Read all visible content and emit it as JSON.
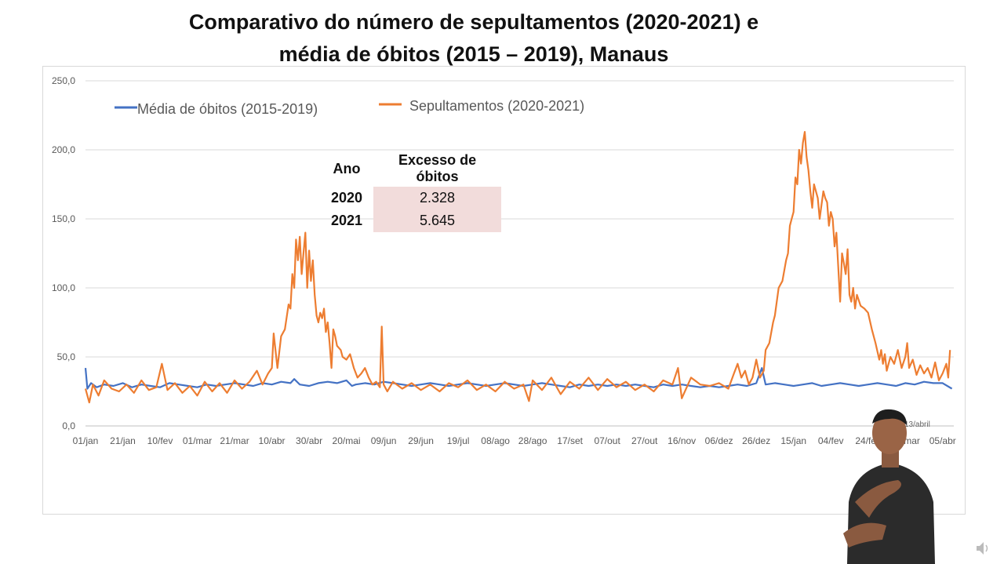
{
  "title": {
    "line1": "Comparativo do número de sepultamentos (2020-2021) e",
    "line2": "média de óbitos (2015 – 2019), Manaus"
  },
  "table": {
    "headers": [
      "Ano",
      "Excesso de óbitos"
    ],
    "rows": [
      {
        "year": "2020",
        "value": "2.328"
      },
      {
        "year": "2021",
        "value": "5.645"
      }
    ]
  },
  "annotation": "13/abril",
  "colors": {
    "media": "#4472c4",
    "sepultamentos": "#ed7d31",
    "table_fill": "#f2dcdb",
    "grid": "#d9d9d9"
  },
  "chart_data": {
    "type": "line",
    "title": "Comparativo do número de sepultamentos (2020-2021) e média de óbitos (2015 – 2019), Manaus",
    "xlabel": "",
    "ylabel": "",
    "ylim": [
      0,
      250
    ],
    "yticks": [
      "0,0",
      "50,0",
      "100,0",
      "150,0",
      "200,0",
      "250,0"
    ],
    "grid": true,
    "legend_position": "top-left",
    "x_start": "01/jan/2020",
    "x_end": "14/abr/2021",
    "categories": [
      "01/jan",
      "21/jan",
      "10/fev",
      "01/mar",
      "21/mar",
      "10/abr",
      "30/abr",
      "20/mai",
      "09/jun",
      "29/jun",
      "19/jul",
      "08/ago",
      "28/ago",
      "17/set",
      "07/out",
      "27/out",
      "16/nov",
      "06/dez",
      "26/dez",
      "15/jan",
      "04/fev",
      "24/fev",
      "16/mar",
      "05/abr"
    ],
    "category_days": [
      0,
      20,
      40,
      60,
      80,
      100,
      120,
      140,
      160,
      180,
      200,
      220,
      240,
      260,
      280,
      300,
      320,
      340,
      360,
      380,
      400,
      420,
      440,
      460
    ],
    "series": [
      {
        "name": "Média de óbitos (2015-2019)",
        "color": "#4472c4",
        "points": [
          [
            0,
            42
          ],
          [
            1,
            27
          ],
          [
            3,
            31
          ],
          [
            6,
            28
          ],
          [
            10,
            30
          ],
          [
            15,
            29
          ],
          [
            20,
            31
          ],
          [
            25,
            28
          ],
          [
            30,
            30
          ],
          [
            35,
            29
          ],
          [
            40,
            28
          ],
          [
            45,
            31
          ],
          [
            50,
            30
          ],
          [
            55,
            29
          ],
          [
            60,
            28
          ],
          [
            65,
            30
          ],
          [
            70,
            29
          ],
          [
            75,
            30
          ],
          [
            80,
            31
          ],
          [
            85,
            30
          ],
          [
            90,
            29
          ],
          [
            95,
            31
          ],
          [
            100,
            30
          ],
          [
            105,
            32
          ],
          [
            110,
            31
          ],
          [
            112,
            34
          ],
          [
            115,
            30
          ],
          [
            120,
            29
          ],
          [
            125,
            31
          ],
          [
            130,
            32
          ],
          [
            135,
            31
          ],
          [
            140,
            33
          ],
          [
            143,
            29
          ],
          [
            145,
            30
          ],
          [
            150,
            31
          ],
          [
            155,
            30
          ],
          [
            160,
            32
          ],
          [
            165,
            31
          ],
          [
            170,
            30
          ],
          [
            175,
            29
          ],
          [
            180,
            30
          ],
          [
            185,
            31
          ],
          [
            190,
            30
          ],
          [
            195,
            29
          ],
          [
            200,
            30
          ],
          [
            205,
            31
          ],
          [
            210,
            30
          ],
          [
            215,
            29
          ],
          [
            220,
            30
          ],
          [
            225,
            31
          ],
          [
            230,
            30
          ],
          [
            235,
            29
          ],
          [
            240,
            30
          ],
          [
            245,
            31
          ],
          [
            250,
            30
          ],
          [
            255,
            29
          ],
          [
            260,
            28
          ],
          [
            265,
            30
          ],
          [
            270,
            29
          ],
          [
            275,
            30
          ],
          [
            280,
            29
          ],
          [
            285,
            30
          ],
          [
            290,
            29
          ],
          [
            295,
            30
          ],
          [
            300,
            29
          ],
          [
            305,
            28
          ],
          [
            310,
            30
          ],
          [
            315,
            29
          ],
          [
            320,
            30
          ],
          [
            325,
            29
          ],
          [
            330,
            28
          ],
          [
            335,
            29
          ],
          [
            340,
            28
          ],
          [
            345,
            29
          ],
          [
            350,
            30
          ],
          [
            355,
            29
          ],
          [
            360,
            31
          ],
          [
            363,
            42
          ],
          [
            365,
            30
          ],
          [
            370,
            31
          ],
          [
            375,
            30
          ],
          [
            380,
            29
          ],
          [
            385,
            30
          ],
          [
            390,
            31
          ],
          [
            395,
            29
          ],
          [
            400,
            30
          ],
          [
            405,
            31
          ],
          [
            410,
            30
          ],
          [
            415,
            29
          ],
          [
            420,
            30
          ],
          [
            425,
            31
          ],
          [
            430,
            30
          ],
          [
            435,
            29
          ],
          [
            440,
            31
          ],
          [
            445,
            30
          ],
          [
            450,
            32
          ],
          [
            455,
            31
          ],
          [
            460,
            31
          ],
          [
            465,
            27
          ]
        ]
      },
      {
        "name": "Sepultamentos (2020-2021)",
        "color": "#ed7d31",
        "points": [
          [
            0,
            27
          ],
          [
            2,
            17
          ],
          [
            4,
            30
          ],
          [
            7,
            22
          ],
          [
            10,
            33
          ],
          [
            14,
            27
          ],
          [
            18,
            25
          ],
          [
            22,
            30
          ],
          [
            26,
            24
          ],
          [
            30,
            33
          ],
          [
            34,
            26
          ],
          [
            38,
            28
          ],
          [
            41,
            45
          ],
          [
            44,
            26
          ],
          [
            48,
            31
          ],
          [
            52,
            24
          ],
          [
            56,
            29
          ],
          [
            60,
            22
          ],
          [
            64,
            32
          ],
          [
            68,
            25
          ],
          [
            72,
            31
          ],
          [
            76,
            24
          ],
          [
            80,
            33
          ],
          [
            84,
            27
          ],
          [
            88,
            32
          ],
          [
            92,
            40
          ],
          [
            95,
            30
          ],
          [
            98,
            38
          ],
          [
            100,
            42
          ],
          [
            101,
            67
          ],
          [
            103,
            42
          ],
          [
            105,
            65
          ],
          [
            107,
            70
          ],
          [
            109,
            88
          ],
          [
            110,
            85
          ],
          [
            111,
            110
          ],
          [
            112,
            100
          ],
          [
            113,
            135
          ],
          [
            114,
            120
          ],
          [
            115,
            137
          ],
          [
            116,
            110
          ],
          [
            117,
            125
          ],
          [
            118,
            140
          ],
          [
            119,
            100
          ],
          [
            120,
            127
          ],
          [
            121,
            105
          ],
          [
            122,
            120
          ],
          [
            123,
            95
          ],
          [
            124,
            80
          ],
          [
            125,
            75
          ],
          [
            126,
            82
          ],
          [
            127,
            78
          ],
          [
            128,
            85
          ],
          [
            129,
            68
          ],
          [
            130,
            75
          ],
          [
            131,
            60
          ],
          [
            132,
            42
          ],
          [
            133,
            70
          ],
          [
            134,
            65
          ],
          [
            135,
            58
          ],
          [
            137,
            55
          ],
          [
            138,
            50
          ],
          [
            140,
            48
          ],
          [
            142,
            52
          ],
          [
            144,
            42
          ],
          [
            146,
            35
          ],
          [
            148,
            38
          ],
          [
            150,
            42
          ],
          [
            152,
            35
          ],
          [
            154,
            30
          ],
          [
            156,
            32
          ],
          [
            158,
            28
          ],
          [
            159,
            72
          ],
          [
            160,
            30
          ],
          [
            162,
            25
          ],
          [
            165,
            32
          ],
          [
            170,
            27
          ],
          [
            175,
            31
          ],
          [
            180,
            26
          ],
          [
            185,
            30
          ],
          [
            190,
            25
          ],
          [
            195,
            31
          ],
          [
            200,
            28
          ],
          [
            205,
            33
          ],
          [
            210,
            26
          ],
          [
            215,
            30
          ],
          [
            220,
            25
          ],
          [
            225,
            32
          ],
          [
            230,
            27
          ],
          [
            235,
            30
          ],
          [
            238,
            18
          ],
          [
            240,
            33
          ],
          [
            245,
            26
          ],
          [
            250,
            35
          ],
          [
            255,
            23
          ],
          [
            260,
            32
          ],
          [
            265,
            27
          ],
          [
            270,
            35
          ],
          [
            275,
            26
          ],
          [
            280,
            34
          ],
          [
            285,
            28
          ],
          [
            290,
            32
          ],
          [
            295,
            26
          ],
          [
            300,
            30
          ],
          [
            305,
            25
          ],
          [
            310,
            33
          ],
          [
            315,
            30
          ],
          [
            318,
            42
          ],
          [
            320,
            20
          ],
          [
            325,
            35
          ],
          [
            330,
            30
          ],
          [
            335,
            29
          ],
          [
            340,
            31
          ],
          [
            345,
            27
          ],
          [
            348,
            38
          ],
          [
            350,
            45
          ],
          [
            352,
            35
          ],
          [
            354,
            40
          ],
          [
            356,
            30
          ],
          [
            358,
            35
          ],
          [
            360,
            48
          ],
          [
            362,
            35
          ],
          [
            364,
            40
          ],
          [
            365,
            55
          ],
          [
            367,
            60
          ],
          [
            369,
            75
          ],
          [
            370,
            80
          ],
          [
            372,
            100
          ],
          [
            374,
            105
          ],
          [
            376,
            120
          ],
          [
            377,
            125
          ],
          [
            378,
            145
          ],
          [
            379,
            150
          ],
          [
            380,
            155
          ],
          [
            381,
            180
          ],
          [
            382,
            175
          ],
          [
            383,
            200
          ],
          [
            384,
            190
          ],
          [
            385,
            205
          ],
          [
            386,
            213
          ],
          [
            387,
            195
          ],
          [
            388,
            185
          ],
          [
            389,
            170
          ],
          [
            390,
            158
          ],
          [
            391,
            175
          ],
          [
            392,
            170
          ],
          [
            393,
            165
          ],
          [
            394,
            150
          ],
          [
            395,
            160
          ],
          [
            396,
            170
          ],
          [
            397,
            165
          ],
          [
            398,
            162
          ],
          [
            399,
            145
          ],
          [
            400,
            155
          ],
          [
            401,
            150
          ],
          [
            402,
            130
          ],
          [
            403,
            140
          ],
          [
            404,
            115
          ],
          [
            405,
            90
          ],
          [
            406,
            125
          ],
          [
            407,
            118
          ],
          [
            408,
            110
          ],
          [
            409,
            128
          ],
          [
            410,
            95
          ],
          [
            411,
            90
          ],
          [
            412,
            100
          ],
          [
            413,
            85
          ],
          [
            414,
            95
          ],
          [
            416,
            87
          ],
          [
            418,
            85
          ],
          [
            420,
            82
          ],
          [
            422,
            70
          ],
          [
            424,
            60
          ],
          [
            426,
            48
          ],
          [
            427,
            55
          ],
          [
            428,
            45
          ],
          [
            429,
            52
          ],
          [
            430,
            40
          ],
          [
            432,
            50
          ],
          [
            434,
            45
          ],
          [
            436,
            55
          ],
          [
            438,
            42
          ],
          [
            440,
            50
          ],
          [
            441,
            60
          ],
          [
            442,
            42
          ],
          [
            444,
            48
          ],
          [
            446,
            37
          ],
          [
            448,
            44
          ],
          [
            450,
            38
          ],
          [
            452,
            42
          ],
          [
            454,
            35
          ],
          [
            456,
            46
          ],
          [
            458,
            33
          ],
          [
            460,
            38
          ],
          [
            462,
            45
          ],
          [
            463,
            35
          ],
          [
            464,
            55
          ]
        ]
      }
    ]
  }
}
